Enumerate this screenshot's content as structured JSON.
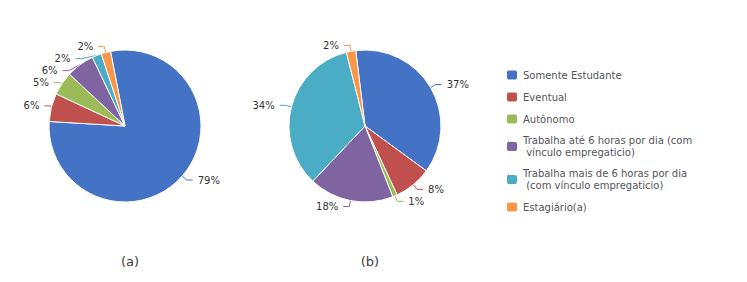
{
  "chart_data": [
    {
      "type": "pie",
      "title": "(a)",
      "categories": [
        "Somente Estudante",
        "Eventual",
        "Autônomo",
        "Trabalha até 6 horas por dia (com\n vínculo empregaticio)",
        "Trabalha mais de 6 horas por dia\n (com vínculo empregaticio)",
        "Estagiário(a)"
      ],
      "values": [
        79,
        6,
        5,
        6,
        2,
        2
      ],
      "value_labels": [
        "79%",
        "6%",
        "5%",
        "6%",
        "2%",
        "2%"
      ],
      "colors": [
        "#4472C4",
        "#C0504D",
        "#9BBB59",
        "#8064A2",
        "#4BACC6",
        "#F79646"
      ],
      "data_labels": true
    },
    {
      "type": "pie",
      "title": "(b)",
      "categories": [
        "Somente Estudante",
        "Eventual",
        "Autônomo",
        "Trabalha até 6 horas por dia (com\n vínculo empregaticio)",
        "Trabalha mais de 6 horas por dia\n (com vínculo empregaticio)",
        "Estagiário(a)"
      ],
      "values": [
        37,
        8,
        1,
        18,
        34,
        2
      ],
      "value_labels": [
        "37%",
        "8%",
        "1%",
        "18%",
        "34%",
        "2%"
      ],
      "colors": [
        "#4472C4",
        "#C0504D",
        "#9BBB59",
        "#8064A2",
        "#4BACC6",
        "#F79646"
      ],
      "data_labels": true,
      "legend": "right"
    }
  ]
}
